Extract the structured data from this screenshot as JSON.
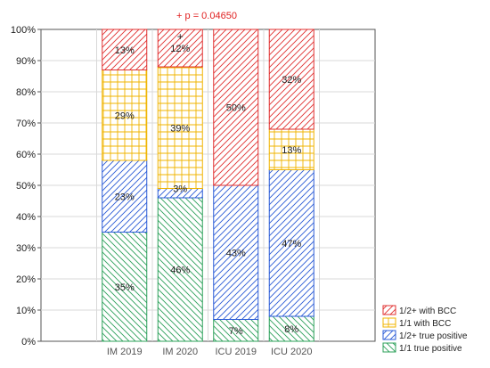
{
  "chart_data": {
    "type": "bar",
    "stacked": true,
    "title": "",
    "xlabel": "",
    "ylabel": "",
    "ylim": [
      0,
      100
    ],
    "y_ticks": [
      "0%",
      "10%",
      "20%",
      "30%",
      "40%",
      "50%",
      "60%",
      "70%",
      "80%",
      "90%",
      "100%"
    ],
    "grid": true,
    "legend_position": "bottom-right",
    "categories": [
      "IM 2019",
      "IM 2020",
      "ICU 2019",
      "ICU 2020"
    ],
    "series": [
      {
        "name": "1/1 true positive",
        "values": [
          35,
          46,
          7,
          8
        ],
        "labels": [
          "35%",
          "46%",
          "7%",
          "8%"
        ],
        "color": "#2ca05a",
        "pattern": "diagonal-down"
      },
      {
        "name": "1/2+ true positive",
        "values": [
          23,
          3,
          43,
          47
        ],
        "labels": [
          "23%",
          "3%",
          "43%",
          "47%"
        ],
        "color": "#2a5bd7",
        "pattern": "diagonal-up"
      },
      {
        "name": "1/1 with BCC",
        "values": [
          29,
          39,
          0,
          13
        ],
        "labels": [
          "29%",
          "39%",
          "",
          "13%"
        ],
        "color": "#f0b400",
        "pattern": "grid"
      },
      {
        "name": "1/2+ with BCC",
        "values": [
          13,
          12,
          50,
          32
        ],
        "labels": [
          "13%",
          "12%",
          "50%",
          "32%"
        ],
        "color": "#e03030",
        "pattern": "diagonal-up"
      }
    ],
    "annotations": [
      {
        "text": "+ p = 0.04650",
        "color": "#e02020"
      },
      {
        "text": "+",
        "category": "IM 2020"
      }
    ]
  }
}
